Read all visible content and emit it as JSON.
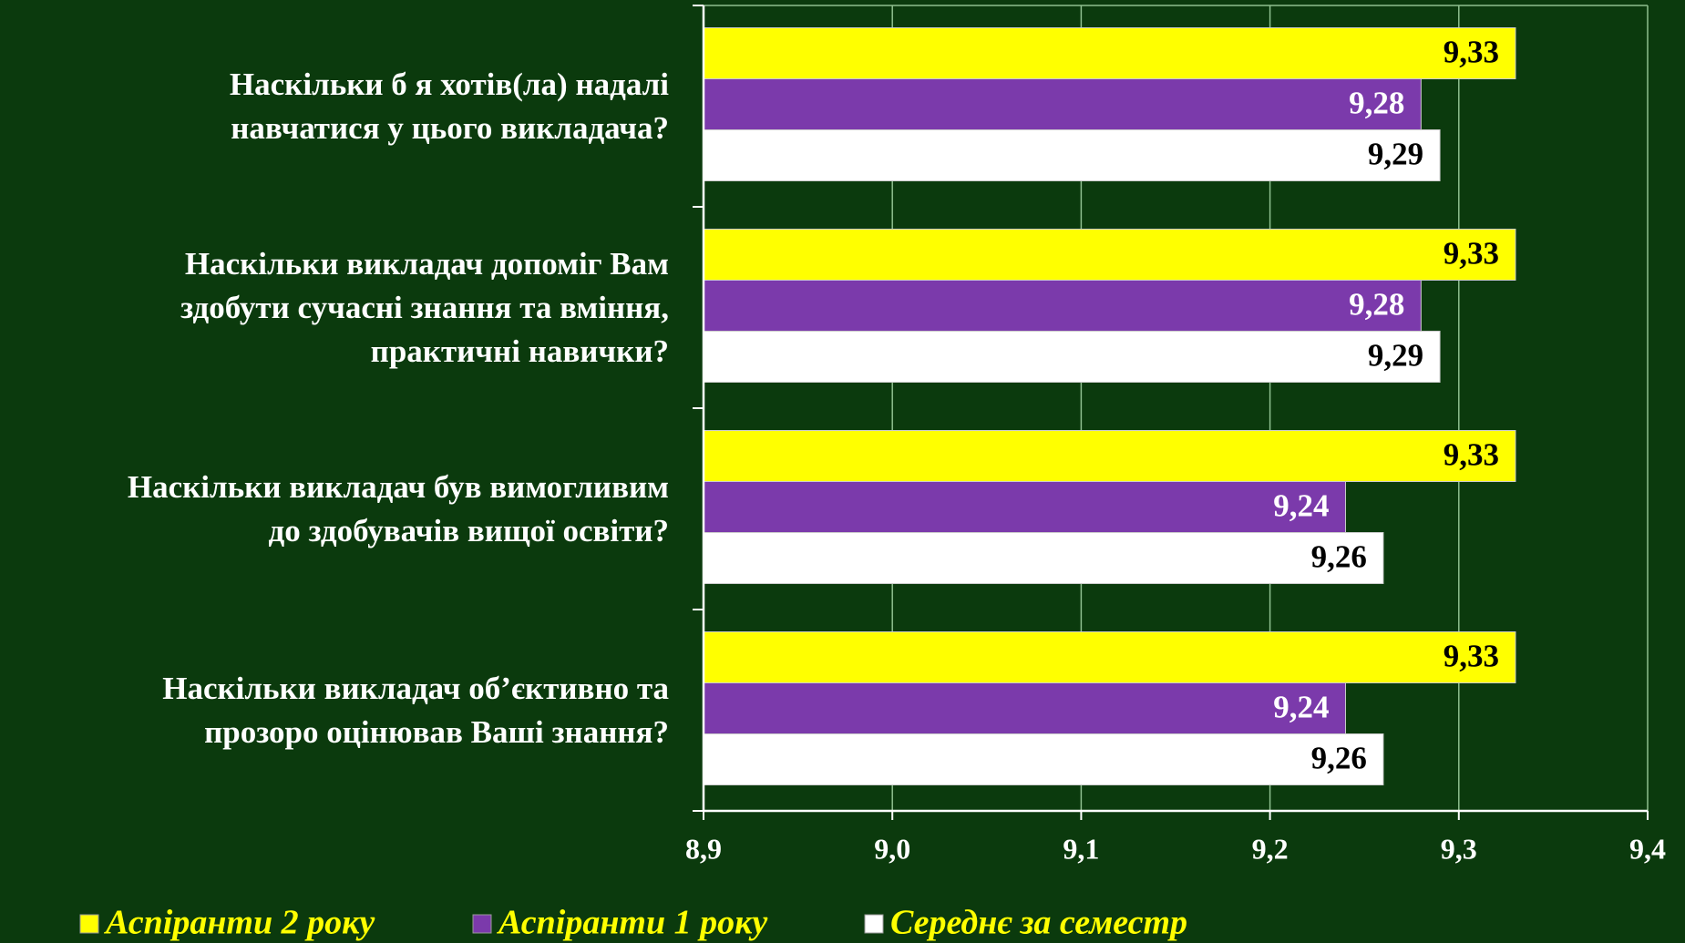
{
  "chart_data": {
    "type": "bar",
    "orientation": "horizontal",
    "categories": [
      "Наскільки б я хотів(ла) надалі\nнавчатися у цього викладача?",
      "Наскільки викладач допоміг Вам\nздобути сучасні знання та вміння,\nпрактичні навички?",
      "Наскільки викладач був вимогливим\nдо здобувачів вищої освіти?",
      "Наскільки викладач об’єктивно та\nпрозоро оцінював Ваші знання?"
    ],
    "series": [
      {
        "name": "Аспіранти 2 року",
        "color": "#ffff00",
        "label_color": "#000000",
        "values": [
          9.33,
          9.33,
          9.33,
          9.33
        ],
        "value_labels": [
          "9,33",
          "9,33",
          "9,33",
          "9,33"
        ]
      },
      {
        "name": "Аспіранти 1 року",
        "color": "#7b3aab",
        "label_color": "#ffffff",
        "values": [
          9.28,
          9.28,
          9.24,
          9.24
        ],
        "value_labels": [
          "9,28",
          "9,28",
          "9,24",
          "9,24"
        ]
      },
      {
        "name": "Середнє за семестр",
        "color": "#ffffff",
        "label_color": "#000000",
        "values": [
          9.29,
          9.29,
          9.26,
          9.26
        ],
        "value_labels": [
          "9,29",
          "9,29",
          "9,26",
          "9,26"
        ]
      }
    ],
    "xlim": [
      8.9,
      9.4
    ],
    "xticks": [
      {
        "value": 8.9,
        "label": "8,9"
      },
      {
        "value": 9.0,
        "label": "9,0"
      },
      {
        "value": 9.1,
        "label": "9,1"
      },
      {
        "value": 9.2,
        "label": "9,2"
      },
      {
        "value": 9.3,
        "label": "9,3"
      },
      {
        "value": 9.4,
        "label": "9,4"
      }
    ],
    "grid": true,
    "legend": "bottom"
  }
}
